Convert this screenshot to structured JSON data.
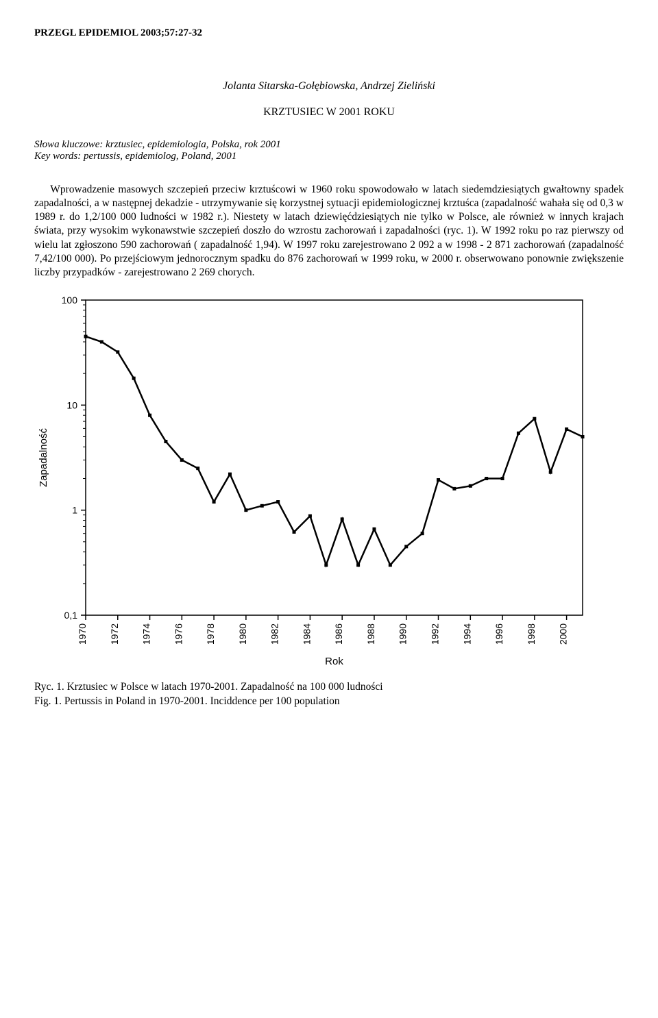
{
  "header": "PRZEGL EPIDEMIOL 2003;57:27-32",
  "authors": "Jolanta Sitarska-Gołębiowska, Andrzej Zieliński",
  "title": "KRZTUSIEC W 2001 ROKU",
  "keywords_pl": "Słowa kluczowe: krztusiec, epidemiologia, Polska, rok 2001",
  "keywords_en": "Key words: pertussis, epidemiolog, Poland, 2001",
  "body": "Wprowadzenie masowych szczepień przeciw krztuścowi w 1960 roku spowodowało w latach siedemdziesiątych gwałtowny spadek zapadalności, a w następnej dekadzie - utrzymywanie się korzystnej sytuacji epidemiologicznej krztuśca (zapadalność wahała się od 0,3 w 1989 r. do 1,2/100 000 ludności w 1982 r.). Niestety w latach dziewięćdziesiątych nie tylko w Polsce, ale również w innych krajach świata, przy wysokim wykonawstwie szczepień doszło do wzrostu zachorowań i zapadalności (ryc. 1). W 1992 roku po raz pierwszy od wielu lat zgłoszono 590 zachorowań ( zapadalność 1,94). W 1997 roku zarejestrowano 2 092 a w 1998 - 2 871 zachorowań (zapadalność 7,42/100 000). Po przejściowym jednorocznym spadku do 876 zachorowań w 1999 roku, w 2000 r. obserwowano ponownie zwiększenie liczby przypadków - zarejestrowano 2 269 chorych.",
  "chart": {
    "type": "line",
    "xlabel": "Rok",
    "ylabel": "Zapadalność",
    "yscale": "log",
    "ylim": [
      0.1,
      100
    ],
    "yticks": [
      0.1,
      1,
      10,
      100
    ],
    "ytick_labels": [
      "0,1",
      "1",
      "10",
      "100"
    ],
    "xlim": [
      1970,
      2001
    ],
    "xticks": [
      1970,
      1972,
      1974,
      1976,
      1978,
      1980,
      1982,
      1984,
      1986,
      1988,
      1990,
      1992,
      1994,
      1996,
      1998,
      2000
    ],
    "years": [
      1970,
      1971,
      1972,
      1973,
      1974,
      1975,
      1976,
      1977,
      1978,
      1979,
      1980,
      1981,
      1982,
      1983,
      1984,
      1985,
      1986,
      1987,
      1988,
      1989,
      1990,
      1991,
      1992,
      1993,
      1994,
      1995,
      1996,
      1997,
      1998,
      1999,
      2000,
      2001
    ],
    "values": [
      45,
      40,
      32,
      18,
      8,
      4.5,
      3.0,
      2.5,
      1.2,
      2.2,
      1.0,
      1.1,
      1.2,
      0.62,
      0.88,
      0.3,
      0.82,
      0.3,
      0.66,
      0.3,
      0.45,
      0.6,
      1.94,
      1.6,
      1.7,
      2.0,
      2.0,
      5.4,
      7.42,
      2.3,
      5.9,
      5.0
    ],
    "line_color": "#000000",
    "line_width": 2.5,
    "marker_size": 5,
    "marker_fill": "#000000",
    "background_color": "#ffffff",
    "axis_color": "#000000",
    "tick_fontsize": 14,
    "label_fontsize": 15
  },
  "fig_caption_pl": "Ryc. 1. Krztusiec w Polsce w latach 1970-2001. Zapadalność na 100 000 ludności",
  "fig_caption_en": "Fig. 1. Pertussis in Poland in 1970-2001. Inciddence per 100 population"
}
